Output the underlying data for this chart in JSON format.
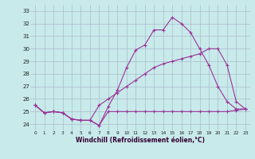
{
  "xlabel": "Windchill (Refroidissement éolien,°C)",
  "background_color": "#c8eaea",
  "grid_color": "#aabbcc",
  "line_color": "#993399",
  "ylim": [
    23.5,
    33.5
  ],
  "xlim": [
    -0.5,
    23.5
  ],
  "yticks": [
    24,
    25,
    26,
    27,
    28,
    29,
    30,
    31,
    32,
    33
  ],
  "xticks": [
    0,
    1,
    2,
    3,
    4,
    5,
    6,
    7,
    8,
    9,
    10,
    11,
    12,
    13,
    14,
    15,
    16,
    17,
    18,
    19,
    20,
    21,
    22,
    23
  ],
  "line1_y": [
    25.5,
    24.9,
    25.0,
    24.9,
    24.4,
    24.3,
    24.3,
    23.9,
    25.4,
    26.7,
    28.5,
    29.9,
    30.3,
    31.5,
    31.5,
    32.5,
    32.0,
    31.3,
    30.0,
    28.7,
    27.0,
    25.8,
    25.2,
    25.2
  ],
  "line2_y": [
    25.5,
    24.9,
    25.0,
    24.9,
    24.4,
    24.3,
    24.3,
    25.5,
    26.0,
    26.5,
    27.0,
    27.5,
    28.0,
    28.5,
    28.8,
    29.0,
    29.2,
    29.4,
    29.6,
    30.0,
    30.0,
    28.7,
    25.8,
    25.2
  ],
  "line3_y": [
    25.5,
    24.9,
    25.0,
    24.9,
    24.4,
    24.3,
    24.3,
    23.9,
    25.0,
    25.0,
    25.0,
    25.0,
    25.0,
    25.0,
    25.0,
    25.0,
    25.0,
    25.0,
    25.0,
    25.0,
    25.0,
    25.0,
    25.1,
    25.2
  ]
}
